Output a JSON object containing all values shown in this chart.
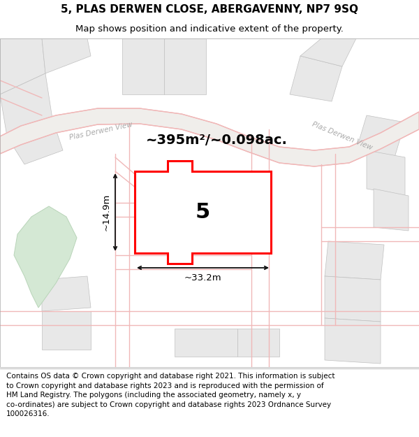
{
  "title_line1": "5, PLAS DERWEN CLOSE, ABERGAVENNY, NP7 9SQ",
  "title_line2": "Map shows position and indicative extent of the property.",
  "area_text": "~395m²/~0.098ac.",
  "label_width": "~33.2m",
  "label_height": "~14.9m",
  "property_number": "5",
  "footer_text": "Contains OS data © Crown copyright and database right 2021. This information is subject to Crown copyright and database rights 2023 and is reproduced with the permission of HM Land Registry. The polygons (including the associated geometry, namely x, y co-ordinates) are subject to Crown copyright and database rights 2023 Ordnance Survey 100026316.",
  "map_bg": "#ffffff",
  "road_line_color": "#f0b8b8",
  "road_band_color": "#f5e8e8",
  "parcel_fill": "#e8e8e8",
  "parcel_edge": "#c0c0c0",
  "property_fill": "#ffffff",
  "property_stroke": "#ff0000",
  "green_fill": "#d4e8d4",
  "green_edge": "#b8d4b8",
  "dim_color": "#111111",
  "street_label_color": "#aaaaaa",
  "title_fontsize": 11,
  "subtitle_fontsize": 9.5,
  "footer_fontsize": 7.5,
  "area_fontsize": 14,
  "prop_num_fontsize": 22
}
